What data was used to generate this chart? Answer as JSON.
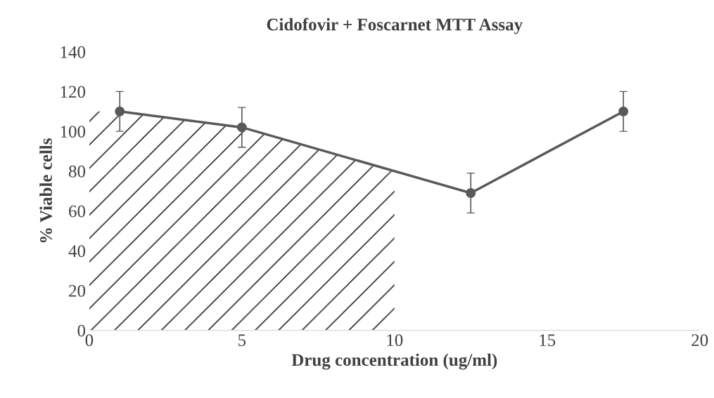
{
  "chart_data": {
    "type": "line",
    "title": "Cidofovir + Foscarnet MTT Assay",
    "xlabel": "Drug concentration (ug/ml)",
    "ylabel": "% Viable cells",
    "x": [
      1,
      5,
      12.5,
      17.5
    ],
    "series": [
      {
        "color": "#595959",
        "values": [
          110,
          102,
          69,
          110
        ],
        "errors": [
          10,
          10,
          10,
          10
        ]
      }
    ],
    "xlim": [
      0,
      20
    ],
    "xticks": [
      0,
      5,
      10,
      15,
      20
    ],
    "ylim": [
      0,
      140
    ],
    "yticks": [
      0,
      20,
      40,
      60,
      80,
      100,
      120,
      140
    ],
    "grid": false,
    "legend": false,
    "marker": "circle",
    "line_style": "solid"
  }
}
